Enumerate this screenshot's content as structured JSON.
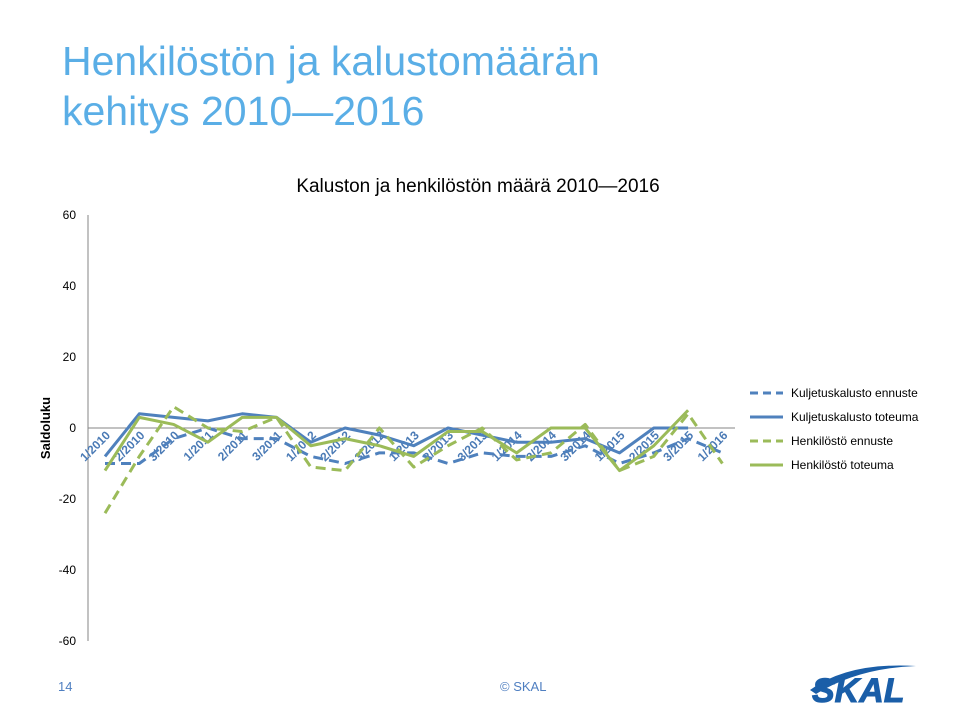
{
  "slide": {
    "title_line1": "Henkilöstön ja kalustomäärän",
    "title_line2": "kehitys 2010—2016",
    "page_number": "14",
    "copyright": "© SKAL",
    "logo_text": "SKAL"
  },
  "colors": {
    "title": "#5aaee6",
    "kalusto": "#4f81bd",
    "henkilosto": "#9bbb59",
    "footer": "#4f7fc1"
  },
  "chart_data": {
    "type": "line",
    "title": "Kaluston ja henkilöstön määrä 2010—2016",
    "ylabel": "Saldoluku",
    "xlabel": "",
    "ylim": [
      -60,
      60
    ],
    "yticks": [
      60,
      40,
      20,
      0,
      -20,
      -40,
      -60
    ],
    "grid": false,
    "legend_position": "right",
    "categories": [
      "1/2010",
      "2/2010",
      "3/2010",
      "1/2011",
      "2/2011",
      "3/2011",
      "1/2012",
      "2/2012",
      "3/2012",
      "1/2013",
      "2/2013",
      "3/2013",
      "1/2014",
      "2/2014",
      "3/2014",
      "1/2015",
      "2/2015",
      "3/2015",
      "1/2016"
    ],
    "series": [
      {
        "name": "Kuljetuskalusto ennuste",
        "style": "dashed",
        "color": "#4f81bd",
        "values": [
          -10,
          -10,
          -3,
          0,
          -3,
          -3,
          -8,
          -10,
          -7,
          -7,
          -10,
          -7,
          -8,
          -8,
          -5,
          -10,
          -7,
          -3,
          -7
        ]
      },
      {
        "name": "Kuljetuskalusto toteuma",
        "style": "solid",
        "color": "#4f81bd",
        "values": [
          -8,
          4,
          3,
          2,
          4,
          3,
          -4,
          0,
          -2,
          -5,
          0,
          -2,
          -4,
          -4,
          -3,
          -7,
          0,
          0,
          null
        ]
      },
      {
        "name": "Henkilöstö ennuste",
        "style": "dashed",
        "color": "#9bbb59",
        "values": [
          -24,
          -8,
          6,
          0,
          -1,
          3,
          -11,
          -12,
          0,
          -11,
          -5,
          0,
          -9,
          -7,
          1,
          -12,
          -8,
          4,
          -10
        ]
      },
      {
        "name": "Henkilöstö toteuma",
        "style": "solid",
        "color": "#9bbb59",
        "values": [
          -12,
          3,
          1,
          -4,
          3,
          3,
          -5,
          -3,
          -5,
          -8,
          -1,
          -1,
          -7,
          0,
          0,
          -12,
          -5,
          5,
          null
        ]
      }
    ]
  }
}
